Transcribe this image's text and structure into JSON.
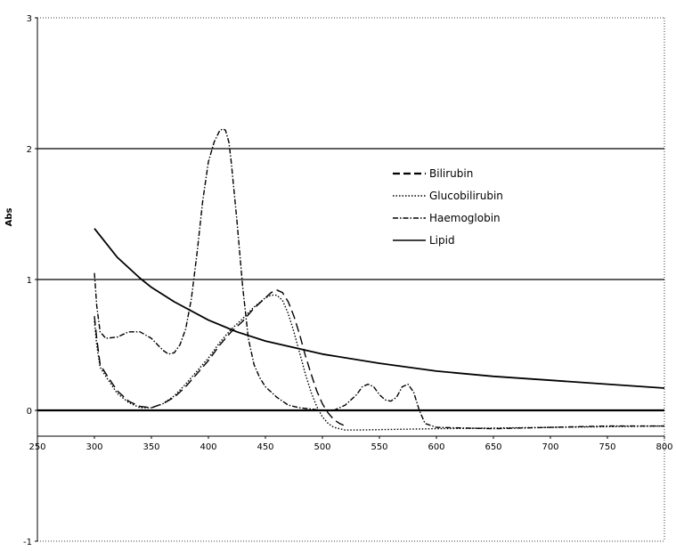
{
  "chart_data": {
    "type": "line",
    "xlabel": "",
    "ylabel": "Abs",
    "xlim": [
      250,
      800
    ],
    "ylim": [
      -1,
      3
    ],
    "x_ticks": [
      "250",
      "300",
      "350",
      "400",
      "450",
      "500",
      "550",
      "600",
      "650",
      "700",
      "750",
      "800"
    ],
    "y_ticks": [
      "-1",
      "0",
      "1",
      "2",
      "3"
    ],
    "grid": "horizontal lines at 0, 1 and 2",
    "legend_position": "top-right",
    "series": [
      {
        "name": "Bilirubin",
        "style": "dashed",
        "x": [
          300,
          302,
          305,
          310,
          320,
          330,
          340,
          350,
          360,
          370,
          380,
          390,
          400,
          410,
          420,
          430,
          440,
          450,
          455,
          460,
          465,
          470,
          475,
          480,
          485,
          490,
          495,
          500,
          505,
          510,
          515,
          520
        ],
        "y": [
          0.72,
          0.55,
          0.35,
          0.28,
          0.15,
          0.07,
          0.03,
          0.02,
          0.05,
          0.1,
          0.18,
          0.28,
          0.38,
          0.5,
          0.6,
          0.68,
          0.78,
          0.86,
          0.9,
          0.92,
          0.9,
          0.83,
          0.72,
          0.58,
          0.42,
          0.28,
          0.15,
          0.05,
          -0.02,
          -0.07,
          -0.1,
          -0.12
        ]
      },
      {
        "name": "Glucobilirubin",
        "style": "dotted",
        "x": [
          300,
          302,
          305,
          310,
          320,
          330,
          340,
          350,
          360,
          370,
          380,
          390,
          400,
          410,
          420,
          430,
          440,
          450,
          455,
          460,
          465,
          470,
          475,
          480,
          485,
          490,
          495,
          500,
          505,
          510,
          515,
          520,
          530,
          600,
          700,
          800
        ],
        "y": [
          0.68,
          0.5,
          0.33,
          0.26,
          0.13,
          0.06,
          0.02,
          0.02,
          0.05,
          0.11,
          0.2,
          0.3,
          0.4,
          0.52,
          0.62,
          0.7,
          0.79,
          0.86,
          0.88,
          0.88,
          0.84,
          0.74,
          0.6,
          0.44,
          0.28,
          0.14,
          0.03,
          -0.05,
          -0.1,
          -0.13,
          -0.14,
          -0.15,
          -0.15,
          -0.14,
          -0.13,
          -0.12
        ]
      },
      {
        "name": "Haemoglobin",
        "style": "dash-dot",
        "x": [
          300,
          302,
          305,
          310,
          320,
          330,
          340,
          350,
          360,
          365,
          370,
          375,
          380,
          385,
          390,
          395,
          400,
          405,
          410,
          413,
          415,
          418,
          420,
          425,
          430,
          435,
          440,
          445,
          450,
          460,
          470,
          480,
          490,
          500,
          510,
          520,
          530,
          535,
          540,
          545,
          550,
          555,
          560,
          565,
          570,
          575,
          580,
          585,
          590,
          600,
          650,
          700,
          750,
          800
        ],
        "y": [
          1.05,
          0.8,
          0.6,
          0.55,
          0.56,
          0.6,
          0.6,
          0.55,
          0.46,
          0.43,
          0.44,
          0.5,
          0.62,
          0.85,
          1.2,
          1.6,
          1.9,
          2.05,
          2.14,
          2.15,
          2.14,
          2.05,
          1.9,
          1.45,
          0.95,
          0.55,
          0.35,
          0.25,
          0.18,
          0.1,
          0.04,
          0.02,
          0.01,
          0.0,
          0.0,
          0.04,
          0.12,
          0.18,
          0.2,
          0.18,
          0.12,
          0.08,
          0.07,
          0.1,
          0.18,
          0.2,
          0.14,
          0.0,
          -0.1,
          -0.13,
          -0.14,
          -0.13,
          -0.12,
          -0.12
        ]
      },
      {
        "name": "Lipid",
        "style": "solid",
        "x": [
          300,
          320,
          340,
          350,
          370,
          400,
          425,
          450,
          500,
          550,
          600,
          650,
          700,
          750,
          800
        ],
        "y": [
          1.39,
          1.17,
          1.01,
          0.94,
          0.83,
          0.69,
          0.6,
          0.53,
          0.43,
          0.36,
          0.3,
          0.26,
          0.23,
          0.2,
          0.17
        ]
      }
    ]
  }
}
